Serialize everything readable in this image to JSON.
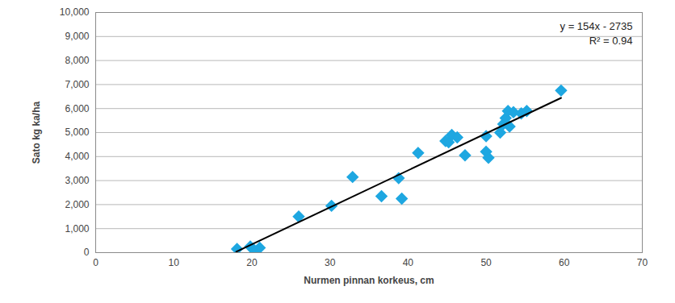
{
  "chart_data": {
    "type": "scatter",
    "x_label": "Nurmen pinnan korkeus, cm",
    "y_label": "Sato kg ka/ha",
    "annotations": [
      "y = 154x - 2735",
      "R² = 0.94"
    ],
    "x": [
      18.1,
      19.8,
      20.3,
      21.0,
      26.0,
      30.2,
      32.9,
      36.6,
      38.8,
      39.2,
      41.3,
      44.8,
      45.2,
      45.6,
      46.3,
      47.3,
      50.0,
      50.0,
      50.3,
      51.8,
      52.2,
      52.5,
      52.8,
      53.0,
      53.5,
      54.5,
      55.2,
      59.6
    ],
    "values": [
      150,
      250,
      100,
      200,
      1500,
      1950,
      3150,
      2350,
      3100,
      2250,
      4150,
      4650,
      4600,
      4900,
      4800,
      4050,
      4850,
      4200,
      3950,
      5000,
      5350,
      5600,
      5900,
      5250,
      5850,
      5800,
      5900,
      6750
    ],
    "color": "#1ea7e1",
    "marker": "diamond",
    "trendline": {
      "x": [
        18.0,
        59.6
      ],
      "values": [
        37,
        6443
      ],
      "color": "#000000",
      "line_style": "solid"
    },
    "xlim": [
      0,
      70
    ],
    "xticks": [
      0,
      10,
      20,
      30,
      40,
      50,
      60,
      70
    ],
    "ylim": [
      0,
      10000
    ],
    "yticks": [
      0,
      1000,
      2000,
      3000,
      4000,
      5000,
      6000,
      7000,
      8000,
      9000,
      10000
    ],
    "grid": "y"
  }
}
